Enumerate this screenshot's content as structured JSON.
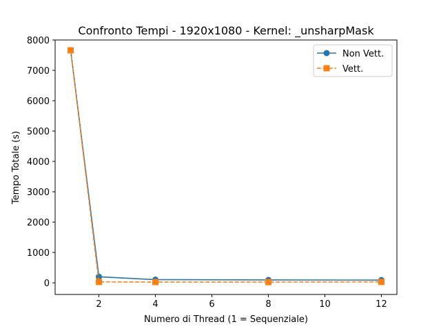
{
  "chart_data": {
    "type": "line",
    "title": "Confronto Tempi - 1920x1080 - Kernel: _unsharpMask",
    "xlabel": "Numero di Thread (1 = Sequenziale)",
    "ylabel": "Tempo Totale (s)",
    "xlim": [
      0.45,
      12.55
    ],
    "ylim": [
      -383,
      8000
    ],
    "xticks": [
      2,
      4,
      6,
      8,
      10,
      12
    ],
    "yticks": [
      0,
      1000,
      2000,
      3000,
      4000,
      5000,
      6000,
      7000,
      8000
    ],
    "grid": false,
    "legend_position": "top-right",
    "x": [
      1,
      2,
      4,
      8,
      12
    ],
    "series": [
      {
        "name": "Non Vett.",
        "values": [
          7660,
          200,
          105,
          95,
          90
        ],
        "color": "#1f77b4",
        "marker": "circle",
        "linestyle": "solid"
      },
      {
        "name": "Vett.",
        "values": [
          7660,
          30,
          25,
          25,
          30
        ],
        "color": "#ff7f0e",
        "marker": "square",
        "linestyle": "dashed"
      }
    ]
  }
}
